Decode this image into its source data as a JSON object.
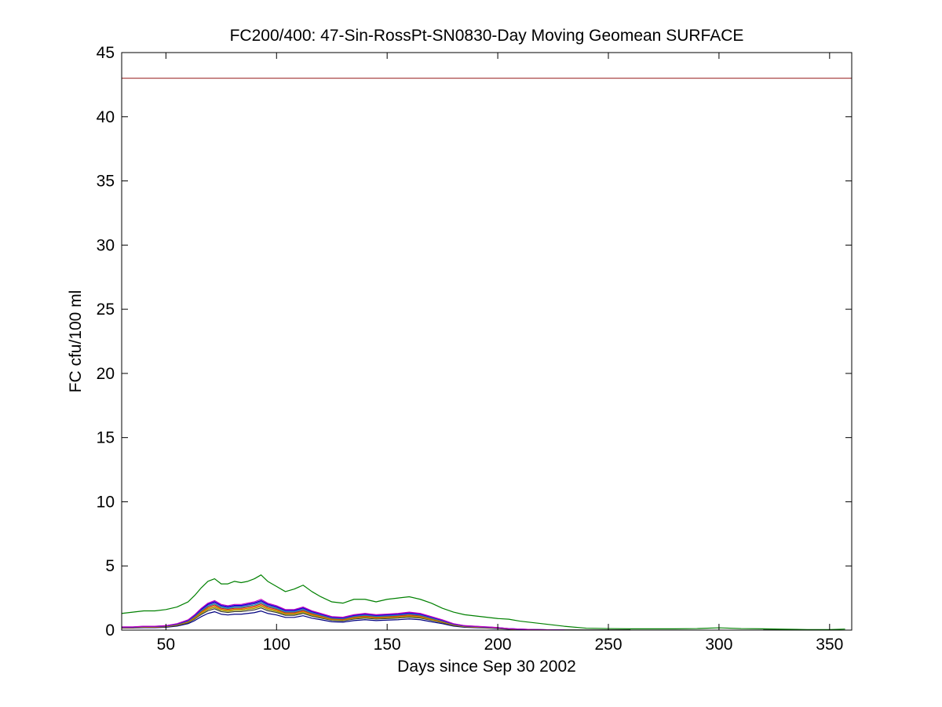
{
  "figure": {
    "background": "#ffffff"
  },
  "chart_data": {
    "type": "line",
    "title": "FC200/400: 47-Sin-RossPt-SN0830-Day Moving Geomean SURFACE",
    "xlabel": "Days since Sep 30 2002",
    "ylabel": "FC cfu/100 ml",
    "xlim": [
      30,
      360
    ],
    "ylim": [
      0,
      45
    ],
    "xticks": [
      50,
      100,
      150,
      200,
      250,
      300,
      350
    ],
    "yticks": [
      0,
      5,
      10,
      15,
      20,
      25,
      30,
      35,
      40,
      45
    ],
    "grid": false,
    "legend_position": "none",
    "axis_color": "#000000",
    "threshold": {
      "name": "fc-standard-line",
      "y": 43,
      "color": "#a03030"
    },
    "x": [
      30,
      35,
      40,
      45,
      50,
      55,
      60,
      63,
      66,
      69,
      72,
      75,
      78,
      81,
      84,
      87,
      90,
      93,
      96,
      100,
      104,
      108,
      112,
      116,
      120,
      125,
      130,
      135,
      140,
      145,
      150,
      155,
      160,
      165,
      170,
      175,
      180,
      185,
      190,
      195,
      200,
      205,
      210,
      215,
      220,
      225,
      230,
      240,
      250,
      260,
      270,
      280,
      290,
      300,
      310,
      320,
      330,
      340,
      350,
      357
    ],
    "series": [
      {
        "name": "green-envelope",
        "color": "#008000",
        "values": [
          1.3,
          1.4,
          1.5,
          1.5,
          1.6,
          1.8,
          2.2,
          2.7,
          3.3,
          3.8,
          4.0,
          3.6,
          3.6,
          3.8,
          3.7,
          3.8,
          4.0,
          4.3,
          3.8,
          3.4,
          3.0,
          3.2,
          3.5,
          3.0,
          2.6,
          2.2,
          2.1,
          2.4,
          2.4,
          2.2,
          2.4,
          2.5,
          2.6,
          2.4,
          2.1,
          1.7,
          1.4,
          1.2,
          1.1,
          1.0,
          0.9,
          0.85,
          0.7,
          0.6,
          0.5,
          0.4,
          0.3,
          0.15,
          0.12,
          0.1,
          0.1,
          0.1,
          0.12,
          0.18,
          0.12,
          0.1,
          0.07,
          0.04,
          0.04,
          0.08
        ]
      },
      {
        "name": "magenta",
        "color": "#c000c0",
        "values": [
          0.25,
          0.25,
          0.3,
          0.3,
          0.35,
          0.5,
          0.8,
          1.2,
          1.7,
          2.1,
          2.3,
          2.0,
          1.9,
          2.0,
          2.0,
          2.1,
          2.2,
          2.4,
          2.1,
          1.9,
          1.6,
          1.6,
          1.8,
          1.5,
          1.3,
          1.05,
          1.0,
          1.2,
          1.3,
          1.2,
          1.25,
          1.3,
          1.4,
          1.3,
          1.05,
          0.8,
          0.5,
          0.35,
          0.3,
          0.25,
          0.2,
          0.12,
          0.08,
          0.05,
          0.03,
          0.02,
          0.02,
          null,
          null,
          null,
          null,
          null,
          null,
          null,
          null,
          null,
          null,
          null,
          null,
          null
        ]
      },
      {
        "name": "blue",
        "color": "#0000dd",
        "values": [
          0.24,
          0.24,
          0.29,
          0.29,
          0.34,
          0.48,
          0.77,
          1.15,
          1.63,
          2.02,
          2.21,
          1.92,
          1.82,
          1.92,
          1.92,
          2.02,
          2.11,
          2.3,
          2.02,
          1.82,
          1.54,
          1.54,
          1.73,
          1.44,
          1.25,
          1.01,
          0.96,
          1.15,
          1.25,
          1.15,
          1.2,
          1.25,
          1.34,
          1.25,
          1.01,
          0.77,
          0.48,
          0.34,
          0.29,
          0.24,
          0.19,
          0.12,
          0.08,
          0.05,
          0.03,
          0.02,
          0.02,
          null,
          null,
          null,
          null,
          null,
          null,
          null,
          null,
          null,
          null,
          null,
          null,
          null
        ]
      },
      {
        "name": "purple",
        "color": "#7030c0",
        "values": [
          0.23,
          0.23,
          0.28,
          0.28,
          0.33,
          0.47,
          0.74,
          1.12,
          1.58,
          1.95,
          2.14,
          1.86,
          1.77,
          1.86,
          1.86,
          1.95,
          2.05,
          2.23,
          1.95,
          1.77,
          1.49,
          1.49,
          1.67,
          1.4,
          1.21,
          0.98,
          0.93,
          1.12,
          1.21,
          1.12,
          1.16,
          1.21,
          1.3,
          1.21,
          0.98,
          0.74,
          0.47,
          0.33,
          0.28,
          0.23,
          0.19,
          0.11,
          0.07,
          0.05,
          0.03,
          0.02,
          0.02,
          null,
          null,
          null,
          null,
          null,
          null,
          null,
          null,
          null,
          null,
          null,
          null,
          null
        ]
      },
      {
        "name": "cyan",
        "color": "#00a8a8",
        "values": [
          0.22,
          0.22,
          0.27,
          0.27,
          0.31,
          0.45,
          0.71,
          1.07,
          1.51,
          1.87,
          2.05,
          1.78,
          1.69,
          1.78,
          1.78,
          1.87,
          1.96,
          2.14,
          1.87,
          1.69,
          1.42,
          1.42,
          1.6,
          1.34,
          1.16,
          0.93,
          0.89,
          1.07,
          1.16,
          1.07,
          1.11,
          1.16,
          1.25,
          1.16,
          0.93,
          0.71,
          0.45,
          0.31,
          0.27,
          0.22,
          0.18,
          0.11,
          0.07,
          null,
          null,
          null,
          null,
          null,
          null,
          null,
          null,
          null,
          null,
          null,
          null,
          null,
          null,
          null,
          null,
          null
        ]
      },
      {
        "name": "red",
        "color": "#cc2020",
        "values": [
          0.21,
          0.21,
          0.26,
          0.26,
          0.3,
          0.43,
          0.68,
          1.02,
          1.45,
          1.79,
          1.96,
          1.7,
          1.62,
          1.7,
          1.7,
          1.79,
          1.87,
          2.04,
          1.79,
          1.62,
          1.36,
          1.36,
          1.53,
          1.28,
          1.11,
          0.89,
          0.85,
          1.02,
          1.11,
          1.02,
          1.06,
          1.11,
          1.19,
          1.11,
          0.89,
          0.68,
          0.43,
          0.3,
          0.26,
          0.21,
          0.17,
          0.1,
          0.07,
          null,
          null,
          null,
          null,
          null,
          null,
          null,
          null,
          null,
          null,
          null,
          null,
          null,
          null,
          null,
          null,
          null
        ]
      },
      {
        "name": "orange",
        "color": "#dd8000",
        "values": [
          0.2,
          0.2,
          0.24,
          0.24,
          0.28,
          0.41,
          0.65,
          0.97,
          1.38,
          1.7,
          1.86,
          1.62,
          1.54,
          1.62,
          1.62,
          1.7,
          1.78,
          1.94,
          1.7,
          1.54,
          1.3,
          1.3,
          1.46,
          1.22,
          1.05,
          0.85,
          0.81,
          0.97,
          1.05,
          0.97,
          1.01,
          1.05,
          1.13,
          1.05,
          0.85,
          0.65,
          0.41,
          0.28,
          0.24,
          0.2,
          0.16,
          0.1,
          0.06,
          null,
          null,
          null,
          null,
          null,
          null,
          null,
          null,
          null,
          null,
          null,
          null,
          null,
          null,
          null,
          null,
          null
        ]
      },
      {
        "name": "olive",
        "color": "#a0a000",
        "values": [
          0.19,
          0.19,
          0.23,
          0.23,
          0.27,
          0.39,
          0.62,
          0.92,
          1.31,
          1.62,
          1.77,
          1.54,
          1.46,
          1.54,
          1.54,
          1.62,
          1.69,
          1.85,
          1.62,
          1.46,
          1.23,
          1.23,
          1.39,
          1.16,
          1.0,
          0.81,
          0.77,
          0.92,
          1.0,
          0.92,
          0.96,
          1.0,
          1.08,
          1.0,
          0.81,
          0.62,
          0.39,
          0.27,
          0.23,
          0.19,
          0.15,
          0.09,
          0.06,
          null,
          null,
          null,
          null,
          null,
          null,
          null,
          null,
          null,
          null,
          null,
          null,
          null,
          null,
          null,
          null,
          null
        ]
      },
      {
        "name": "dark-gray",
        "color": "#383838",
        "values": [
          0.18,
          0.18,
          0.22,
          0.22,
          0.25,
          0.36,
          0.58,
          0.86,
          1.22,
          1.51,
          1.66,
          1.44,
          1.37,
          1.44,
          1.44,
          1.51,
          1.58,
          1.73,
          1.51,
          1.37,
          1.15,
          1.15,
          1.3,
          1.08,
          0.94,
          0.76,
          0.72,
          0.86,
          0.94,
          0.86,
          0.9,
          0.94,
          1.01,
          0.94,
          0.76,
          0.58,
          0.36,
          0.25,
          0.22,
          0.18,
          0.14,
          0.09,
          0.06,
          0.04,
          0.03,
          0.02,
          0.02,
          0.02,
          0.02,
          0.02,
          null,
          null,
          null,
          null,
          null,
          0.02,
          0.02,
          null,
          null,
          null
        ]
      },
      {
        "name": "navy",
        "color": "#000080",
        "values": [
          0.16,
          0.16,
          0.19,
          0.19,
          0.22,
          0.31,
          0.5,
          0.74,
          1.05,
          1.3,
          1.43,
          1.24,
          1.18,
          1.24,
          1.24,
          1.3,
          1.36,
          1.49,
          1.3,
          1.18,
          0.99,
          0.99,
          1.12,
          0.93,
          0.81,
          0.65,
          0.62,
          0.74,
          0.81,
          0.74,
          0.78,
          0.81,
          0.87,
          0.81,
          0.65,
          0.5,
          0.31,
          0.22,
          0.19,
          0.16,
          0.12,
          0.07,
          0.05,
          0.03,
          0.02,
          0.01,
          0.01,
          null,
          null,
          null,
          null,
          null,
          null,
          null,
          null,
          null,
          null,
          null,
          null,
          null
        ]
      }
    ]
  }
}
